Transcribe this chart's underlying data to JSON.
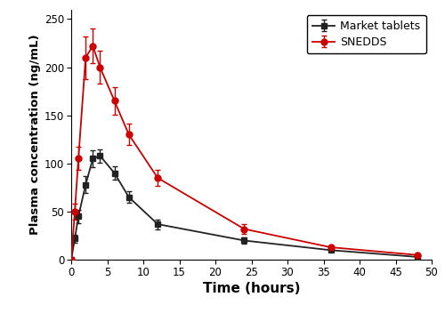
{
  "market_time": [
    0,
    0.5,
    1,
    2,
    3,
    4,
    6,
    8,
    12,
    24,
    36,
    48
  ],
  "market_conc": [
    0,
    22,
    45,
    78,
    105,
    108,
    90,
    65,
    37,
    20,
    10,
    3
  ],
  "market_err": [
    0,
    4,
    7,
    9,
    9,
    7,
    7,
    6,
    5,
    3,
    2,
    1
  ],
  "snedds_time": [
    0,
    0.5,
    1,
    2,
    3,
    4,
    6,
    8,
    12,
    24,
    36,
    48
  ],
  "snedds_conc": [
    0,
    50,
    105,
    210,
    222,
    200,
    165,
    130,
    85,
    32,
    13,
    5
  ],
  "snedds_err": [
    0,
    8,
    12,
    22,
    18,
    17,
    14,
    11,
    8,
    5,
    2,
    1
  ],
  "xlabel": "Time (hours)",
  "ylabel": "Plasma concentration (ng/mL)",
  "xlim": [
    0,
    50
  ],
  "ylim": [
    0,
    260
  ],
  "xticks": [
    0,
    5,
    10,
    15,
    20,
    25,
    30,
    35,
    40,
    45,
    50
  ],
  "yticks": [
    0,
    50,
    100,
    150,
    200,
    250
  ],
  "market_color": "#222222",
  "snedds_color": "#cc0000",
  "legend_labels": [
    "Market tablets",
    "SNEDDS"
  ],
  "background_color": "#ffffff"
}
